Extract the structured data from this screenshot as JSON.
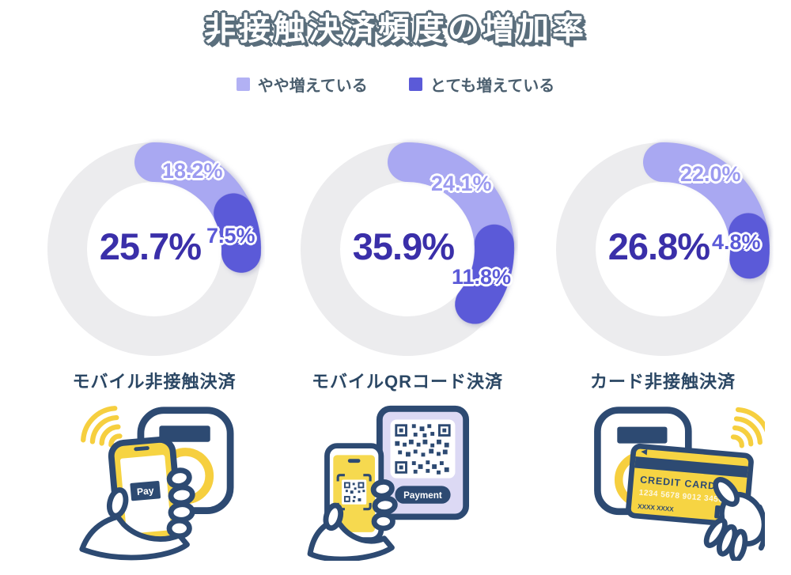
{
  "chart_data": {
    "type": "pie",
    "variant": "donut-multiple",
    "title": "非接触決済頻度の増加率",
    "legend_position": "top",
    "unit": "%",
    "angle_basis": "segment values are percent of a full 360° circle, starting at 12 o'clock, clockwise",
    "legend": [
      {
        "label": "やや増えている",
        "color": "#b2b1f4"
      },
      {
        "label": "とても増えている",
        "color": "#5b5ad8"
      }
    ],
    "charts": [
      {
        "category": "モバイル非接触決済",
        "center_label": "25.7%",
        "center_value": 25.7,
        "segments": [
          {
            "name": "やや増えている",
            "value": 18.2,
            "label": "18.2%"
          },
          {
            "name": "とても増えている",
            "value": 7.5,
            "label": "7.5%"
          }
        ]
      },
      {
        "category": "モバイルQRコード決済",
        "center_label": "35.9%",
        "center_value": 35.9,
        "segments": [
          {
            "name": "やや増えている",
            "value": 24.1,
            "label": "24.1%"
          },
          {
            "name": "とても増えている",
            "value": 11.8,
            "label": "11.8%"
          }
        ]
      },
      {
        "category": "カード非接触決済",
        "center_label": "26.8%",
        "center_value": 26.8,
        "segments": [
          {
            "name": "やや増えている",
            "value": 22.0,
            "label": "22.0%"
          },
          {
            "name": "とても増えている",
            "value": 4.8,
            "label": "4.8%"
          }
        ]
      }
    ]
  },
  "illustrations": {
    "mobile_nfc": {
      "screen_button": "Pay"
    },
    "qr": {
      "board_button": "Payment"
    },
    "card": {
      "card_title": "CREDIT CARD",
      "card_number": "1234 5678 9012 3456",
      "card_holder": "XXXX XXXX"
    }
  },
  "colors": {
    "arc_light": "#a9a8f2",
    "arc_dark": "#5b5ad8",
    "ring": "#ececee",
    "center_text": "#3a2fa9",
    "label_light": "#9b9af0",
    "label_dark": "#5b5ad8",
    "title_fill": "#ffffff",
    "title_outline": "#5a6e7c",
    "legend_text": "#4a5e6e",
    "category_text": "#2b4764",
    "illustration_navy": "#2d4a72",
    "illustration_yellow": "#f6d443",
    "qr_board_purple": "#dcd9f4"
  }
}
